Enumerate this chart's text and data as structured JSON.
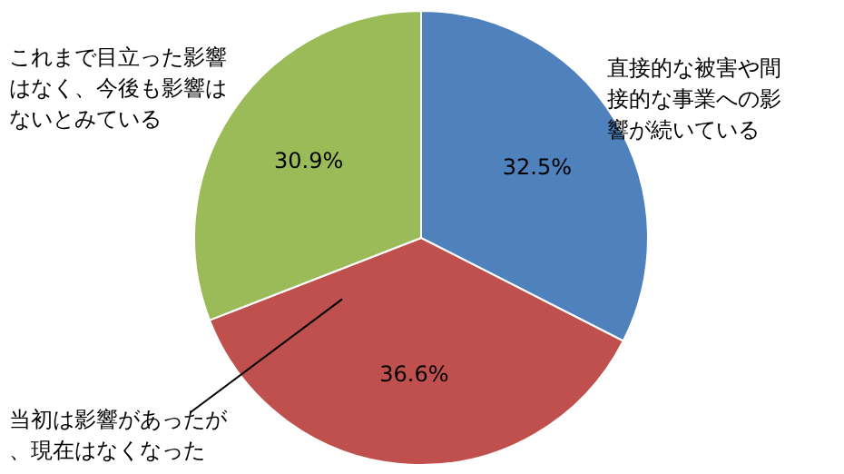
{
  "chart_data": {
    "type": "pie",
    "categories": [
      "直接的な被害や間接的な事業への影響が続いている",
      "当初は影響があったが、現在はなくなった",
      "これまで目立った影響はなく、今後も影響はないとみている"
    ],
    "values": [
      32.5,
      36.6,
      30.9
    ],
    "value_labels": [
      "32.5%",
      "36.6%",
      "30.9%"
    ],
    "colors": [
      "#4f81bd",
      "#c0504d",
      "#9bbb59"
    ]
  }
}
